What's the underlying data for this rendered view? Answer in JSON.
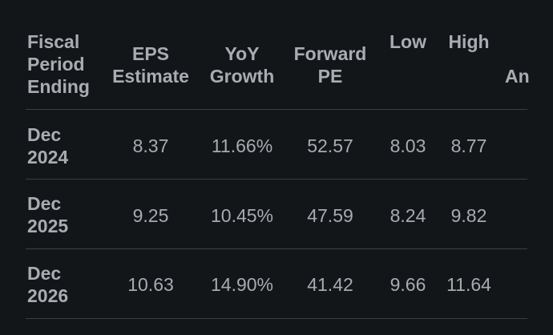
{
  "table": {
    "headers": {
      "period": "Fiscal\nPeriod\nEnding",
      "eps": "EPS\nEstimate",
      "yoy": "YoY\nGrowth",
      "pe": "Forward\nPE",
      "low": "Low",
      "high": "High",
      "analysts": "An"
    },
    "rows": [
      {
        "period": "Dec\n2024",
        "eps": "8.37",
        "yoy": "11.66%",
        "pe": "52.57",
        "low": "8.03",
        "high": "8.77"
      },
      {
        "period": "Dec\n2025",
        "eps": "9.25",
        "yoy": "10.45%",
        "pe": "47.59",
        "low": "8.24",
        "high": "9.82"
      },
      {
        "period": "Dec\n2026",
        "eps": "10.63",
        "yoy": "14.90%",
        "pe": "41.42",
        "low": "9.66",
        "high": "11.64"
      }
    ]
  }
}
